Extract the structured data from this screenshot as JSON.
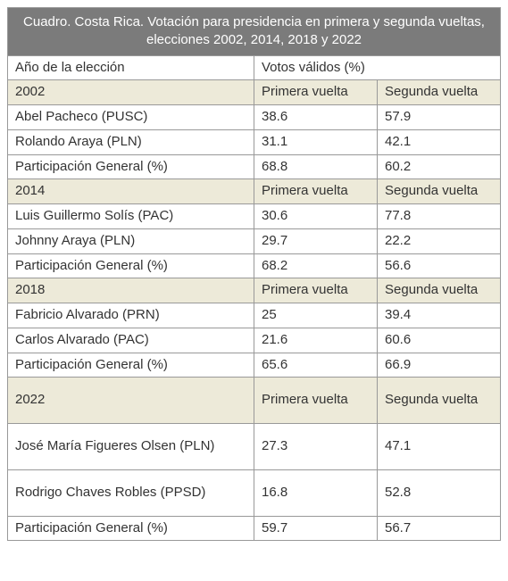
{
  "title": "Cuadro. Costa Rica. Votación para presidencia en primera y segunda vueltas, elecciones 2002, 2014, 2018 y 2022",
  "header": {
    "year_label": "Año de la elección",
    "votes_label": "Votos válidos (%)"
  },
  "round_labels": {
    "first": "Primera vuelta",
    "second": "Segunda vuelta"
  },
  "sections": [
    {
      "year": "2002",
      "rows": [
        {
          "label": "Abel Pacheco (PUSC)",
          "first": "38.6",
          "second": "57.9"
        },
        {
          "label": "Rolando Araya (PLN)",
          "first": "31.1",
          "second": "42.1"
        },
        {
          "label": "Participación General (%)",
          "first": "68.8",
          "second": "60.2"
        }
      ]
    },
    {
      "year": "2014",
      "rows": [
        {
          "label": "Luis Guillermo Solís (PAC)",
          "first": "30.6",
          "second": "77.8"
        },
        {
          "label": "Johnny Araya (PLN)",
          "first": "29.7",
          "second": "22.2"
        },
        {
          "label": "Participación General (%)",
          "first": "68.2",
          "second": "56.6"
        }
      ]
    },
    {
      "year": "2018",
      "rows": [
        {
          "label": "Fabricio Alvarado (PRN)",
          "first": "25",
          "second": "39.4"
        },
        {
          "label": "Carlos Alvarado (PAC)",
          "first": "21.6",
          "second": "60.6"
        },
        {
          "label": "Participación General (%)",
          "first": "65.6",
          "second": "66.9"
        }
      ]
    },
    {
      "year": "2022",
      "tall": true,
      "rows": [
        {
          "label": "José María Figueres Olsen (PLN)",
          "first": "27.3",
          "second": "47.1",
          "tall": true
        },
        {
          "label": "Rodrigo Chaves Robles (PPSD)",
          "first": "16.8",
          "second": "52.8",
          "tall": true
        },
        {
          "label": "Participación General (%)",
          "first": "59.7",
          "second": "56.7"
        }
      ]
    }
  ],
  "style": {
    "header_bg": "#7b7b7b",
    "header_fg": "#ffffff",
    "shaded_bg": "#edead9",
    "border_color": "#999999",
    "font_size": 15
  }
}
